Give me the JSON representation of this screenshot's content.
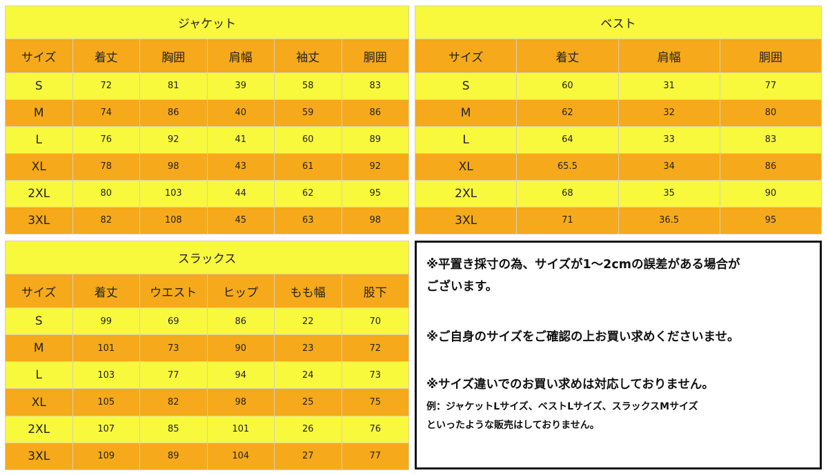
{
  "jacket": {
    "title": "ジャケット",
    "headers": [
      "サイズ",
      "着丈",
      "胸囲",
      "肩幅",
      "袖丈",
      "胴囲"
    ],
    "rows": [
      [
        "S",
        "72",
        "81",
        "39",
        "58",
        "83"
      ],
      [
        "M",
        "74",
        "86",
        "40",
        "59",
        "86"
      ],
      [
        "L",
        "76",
        "92",
        "41",
        "60",
        "89"
      ],
      [
        "XL",
        "78",
        "98",
        "43",
        "61",
        "92"
      ],
      [
        "2XL",
        "80",
        "103",
        "44",
        "62",
        "95"
      ],
      [
        "3XL",
        "82",
        "108",
        "45",
        "63",
        "98"
      ]
    ]
  },
  "vest": {
    "title": "ベスト",
    "headers": [
      "サイズ",
      "着丈",
      "肩幅",
      "胴囲"
    ],
    "rows": [
      [
        "S",
        "60",
        "31",
        "77"
      ],
      [
        "M",
        "62",
        "32",
        "80"
      ],
      [
        "L",
        "64",
        "33",
        "83"
      ],
      [
        "XL",
        "65.5",
        "34",
        "86"
      ],
      [
        "2XL",
        "68",
        "35",
        "90"
      ],
      [
        "3XL",
        "71",
        "36.5",
        "95"
      ]
    ]
  },
  "slacks": {
    "title": "スラックス",
    "headers": [
      "サイズ",
      "着丈",
      "ウエスト",
      "ヒップ",
      "もも幅",
      "股下"
    ],
    "rows": [
      [
        "S",
        "99",
        "69",
        "86",
        "22",
        "70"
      ],
      [
        "M",
        "101",
        "73",
        "90",
        "23",
        "72"
      ],
      [
        "L",
        "103",
        "77",
        "94",
        "24",
        "73"
      ],
      [
        "XL",
        "105",
        "82",
        "98",
        "25",
        "75"
      ],
      [
        "2XL",
        "107",
        "85",
        "101",
        "26",
        "76"
      ],
      [
        "3XL",
        "109",
        "89",
        "104",
        "27",
        "77"
      ]
    ]
  },
  "notes": {
    "note1_line1": "※平置き採寸の為、サイズが1〜2cmの誤差がある場合が",
    "note1_line2": "ございます。",
    "note2": "※ご自身のサイズをご確認の上お買い求めくださいませ。",
    "note3": "※サイズ違いでのお買い求めは対応しておりません。",
    "example_line1": "例：ジャケットLサイズ、ベストLサイズ、スラックスMサイズ",
    "example_line2": "といったような販売はしておりません。"
  },
  "colors": {
    "yellow": "#f8f83c",
    "orange": "#f6a91a",
    "border": "#111111"
  }
}
